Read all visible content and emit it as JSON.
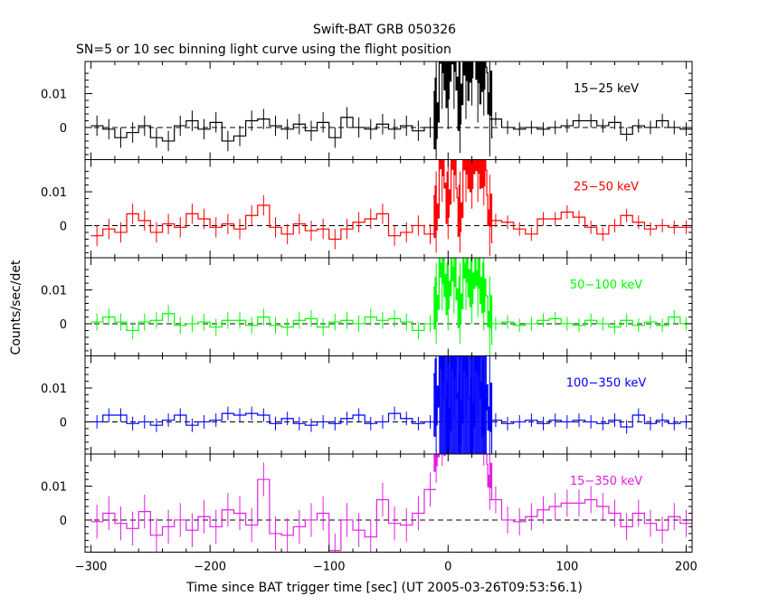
{
  "chart_data": {
    "type": "line",
    "title": "Swift-BAT GRB 050326",
    "subtitle": "SN=5 or 10 sec binning light curve using the flight position",
    "xlabel": "Time since BAT trigger time [sec] (UT 2005-03-26T09:53:56.1)",
    "ylabel": "Counts/sec/det",
    "xlim": [
      -305,
      205
    ],
    "ylim": [
      -0.0095,
      0.0195
    ],
    "x_ticks": [
      -300,
      -200,
      -100,
      0,
      100,
      200
    ],
    "x_tick_labels": [
      "−300",
      "−200",
      "−100",
      "0",
      "100",
      "200"
    ],
    "y_ticks": [
      0,
      0.01
    ],
    "y_tick_labels": [
      "0",
      "0.01"
    ],
    "zero_line": "dashed",
    "panels": [
      {
        "name": "15−25 keV",
        "color": "#000000",
        "pre_times": [
          -295,
          -285,
          -275,
          -265,
          -255,
          -245,
          -235,
          -225,
          -215,
          -205,
          -195,
          -185,
          -175,
          -165,
          -155,
          -145,
          -135,
          -125,
          -115,
          -105,
          -95,
          -85,
          -75,
          -65,
          -55,
          -45,
          -35,
          -25,
          -15
        ],
        "pre_values": [
          0.0005,
          -0.0005,
          -0.003,
          -0.0015,
          0.0005,
          -0.003,
          -0.004,
          0.0005,
          0.002,
          -0.0005,
          0.0015,
          -0.004,
          -0.0025,
          0.002,
          0.0025,
          0.0005,
          -0.0005,
          0.001,
          -0.001,
          0.0015,
          -0.003,
          0.003,
          0.0,
          -0.0005,
          0.001,
          -0.0005,
          0.0005,
          -0.001,
          0.0
        ],
        "pre_errors": 0.003,
        "burst_times": [
          -10,
          -5,
          0,
          5,
          10,
          15,
          20,
          25,
          30,
          35
        ],
        "burst_values": [
          0.004,
          0.022,
          0.016,
          0.022,
          0.009,
          0.019,
          0.023,
          0.018,
          0.02,
          0.008
        ],
        "burst_errors": 0.011,
        "post_times": [
          40,
          50,
          60,
          70,
          80,
          90,
          100,
          110,
          120,
          130,
          140,
          150,
          160,
          170,
          180,
          190,
          200
        ],
        "post_values": [
          0.0025,
          0.0,
          -0.0005,
          0.0,
          -0.0005,
          0.0,
          0.0005,
          0.002,
          0.002,
          0.0005,
          0.0015,
          -0.002,
          0.0005,
          0.0,
          0.002,
          0.0,
          -0.0005
        ],
        "post_errors": 0.002
      },
      {
        "name": "25−50 keV",
        "color": "#ff0000",
        "pre_times": [
          -295,
          -285,
          -275,
          -265,
          -255,
          -245,
          -235,
          -225,
          -215,
          -205,
          -195,
          -185,
          -175,
          -165,
          -155,
          -145,
          -135,
          -125,
          -115,
          -105,
          -95,
          -85,
          -75,
          -65,
          -55,
          -45,
          -35,
          -25,
          -15
        ],
        "pre_values": [
          -0.003,
          -0.001,
          -0.002,
          0.0035,
          0.0015,
          -0.002,
          0.0005,
          -0.0005,
          0.0035,
          0.002,
          -0.0005,
          0.0005,
          -0.001,
          0.003,
          0.006,
          -0.0005,
          -0.0025,
          0.0005,
          -0.0015,
          -0.001,
          -0.004,
          -0.001,
          0.001,
          0.002,
          0.0035,
          -0.003,
          -0.002,
          0.0,
          -0.0025
        ],
        "pre_errors": 0.003,
        "burst_times": [
          -10,
          -5,
          0,
          5,
          10,
          15,
          20,
          25,
          30,
          35
        ],
        "burst_values": [
          0.004,
          0.019,
          0.008,
          0.019,
          0.004,
          0.019,
          0.017,
          0.019,
          0.018,
          0.003
        ],
        "burst_errors": 0.008,
        "post_times": [
          40,
          50,
          60,
          70,
          80,
          90,
          100,
          110,
          120,
          130,
          140,
          150,
          160,
          170,
          180,
          190,
          200
        ],
        "post_values": [
          0.0015,
          0.001,
          -0.001,
          -0.0025,
          0.002,
          0.002,
          0.004,
          0.0025,
          -0.0005,
          -0.0025,
          0.0,
          0.003,
          0.001,
          -0.001,
          0.0,
          -0.0005,
          -0.0005
        ],
        "post_errors": 0.002
      },
      {
        "name": "50−100 keV",
        "color": "#00ff00",
        "pre_times": [
          -295,
          -285,
          -275,
          -265,
          -255,
          -245,
          -235,
          -225,
          -215,
          -205,
          -195,
          -185,
          -175,
          -165,
          -155,
          -145,
          -135,
          -125,
          -115,
          -105,
          -95,
          -85,
          -75,
          -65,
          -55,
          -45,
          -35,
          -25,
          -15
        ],
        "pre_values": [
          0.0005,
          0.002,
          0.0005,
          -0.002,
          0.0005,
          0.001,
          0.003,
          -0.0005,
          0.0,
          0.0005,
          -0.001,
          0.001,
          0.001,
          -0.0005,
          0.002,
          -0.0005,
          -0.001,
          0.001,
          0.0015,
          -0.001,
          0.0005,
          0.001,
          0.0,
          0.002,
          0.001,
          0.0015,
          0.0005,
          -0.002,
          0.0
        ],
        "pre_errors": 0.0025,
        "burst_times": [
          -10,
          -5,
          0,
          5,
          10,
          15,
          20,
          25,
          30,
          35
        ],
        "burst_values": [
          0.006,
          0.016,
          0.01,
          0.015,
          0.006,
          0.016,
          0.012,
          0.014,
          0.01,
          0.002
        ],
        "burst_errors": 0.008,
        "post_times": [
          40,
          50,
          60,
          70,
          80,
          90,
          100,
          110,
          120,
          130,
          140,
          150,
          160,
          170,
          180,
          190,
          200
        ],
        "post_values": [
          0.0,
          0.0005,
          -0.0005,
          0.0,
          0.001,
          0.0015,
          0.0,
          -0.0005,
          0.001,
          0.0,
          -0.001,
          0.001,
          -0.0005,
          0.0005,
          -0.0005,
          0.002,
          0.0
        ],
        "post_errors": 0.002
      },
      {
        "name": "100−350 keV",
        "color": "#0000ff",
        "pre_times": [
          -295,
          -285,
          -275,
          -265,
          -255,
          -245,
          -235,
          -225,
          -215,
          -205,
          -195,
          -185,
          -175,
          -165,
          -155,
          -145,
          -135,
          -125,
          -115,
          -105,
          -95,
          -85,
          -75,
          -65,
          -55,
          -45,
          -35,
          -25,
          -15
        ],
        "pre_values": [
          0.0,
          0.002,
          0.002,
          -0.0005,
          0.0,
          -0.001,
          0.0005,
          0.002,
          -0.001,
          0.0,
          0.0005,
          0.0025,
          0.002,
          0.0025,
          0.002,
          -0.0005,
          0.001,
          -0.0005,
          -0.001,
          0.0,
          -0.0005,
          0.001,
          0.002,
          -0.0005,
          0.0,
          0.0025,
          0.001,
          -0.0005,
          0.0
        ],
        "pre_errors": 0.002,
        "burst_times": [
          -10,
          -5,
          0,
          5,
          10,
          15,
          20,
          25,
          30,
          35
        ],
        "burst_values": [
          0.007,
          0.019,
          0.0,
          0.019,
          0.002,
          0.019,
          0.001,
          0.019,
          0.006,
          0.002
        ],
        "burst_errors": 0.012,
        "post_times": [
          40,
          50,
          60,
          70,
          80,
          90,
          100,
          110,
          120,
          130,
          140,
          150,
          160,
          170,
          180,
          190,
          200
        ],
        "post_values": [
          0.0005,
          -0.0005,
          0.0,
          0.0005,
          -0.0005,
          0.0005,
          0.0,
          0.0005,
          0.0,
          -0.0005,
          0.0005,
          -0.0015,
          0.002,
          -0.0005,
          0.0005,
          -0.0005,
          0.0
        ],
        "post_errors": 0.002
      },
      {
        "name": "15−350 keV",
        "color": "#e020e0",
        "pre_times": [
          -295,
          -285,
          -275,
          -265,
          -255,
          -245,
          -235,
          -225,
          -215,
          -205,
          -195,
          -185,
          -175,
          -165,
          -155,
          -145,
          -135,
          -125,
          -115,
          -105,
          -95,
          -85,
          -75,
          -65,
          -55,
          -45,
          -35,
          -25,
          -15
        ],
        "pre_values": [
          -0.0005,
          0.002,
          -0.001,
          -0.0025,
          0.0025,
          -0.0045,
          -0.002,
          0.0,
          -0.003,
          0.001,
          -0.002,
          0.003,
          0.002,
          -0.0015,
          0.012,
          -0.004,
          -0.0045,
          -0.002,
          0.0,
          0.002,
          -0.009,
          0.0,
          -0.003,
          -0.005,
          0.006,
          -0.001,
          -0.0015,
          0.002,
          0.009
        ],
        "pre_errors": 0.005,
        "burst_times": [
          -10,
          -5,
          0,
          5,
          10,
          15,
          20,
          25,
          30,
          35
        ],
        "burst_values": [
          0.02,
          0.025,
          0.03,
          0.03,
          0.03,
          0.03,
          0.03,
          0.03,
          0.025,
          0.012
        ],
        "burst_errors": 0.006,
        "post_times": [
          40,
          50,
          60,
          70,
          80,
          90,
          100,
          110,
          120,
          130,
          140,
          150,
          160,
          170,
          180,
          190,
          200
        ],
        "post_values": [
          0.006,
          0.0,
          -0.0005,
          0.001,
          0.003,
          0.004,
          0.005,
          0.005,
          0.006,
          0.004,
          0.002,
          -0.002,
          0.002,
          -0.001,
          -0.003,
          0.001,
          -0.001
        ],
        "post_errors": 0.004
      }
    ]
  }
}
